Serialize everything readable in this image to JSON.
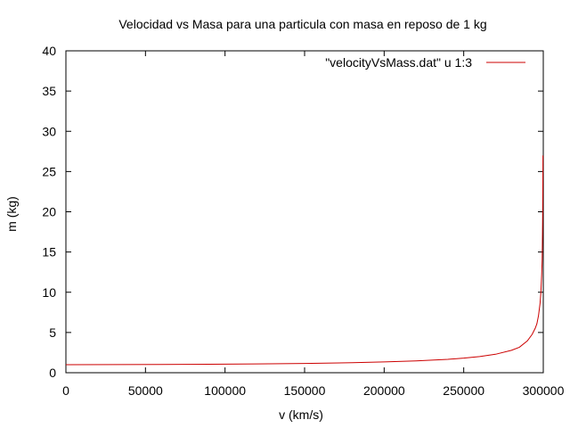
{
  "chart_data": {
    "type": "line",
    "title": "Velocidad vs Masa para una particula con masa en reposo de 1 kg",
    "xlabel": "v (km/s)",
    "ylabel": "m (kg)",
    "xlim": [
      0,
      300000
    ],
    "ylim": [
      0,
      40
    ],
    "x_ticks": [
      "0",
      "50000",
      "100000",
      "150000",
      "200000",
      "250000",
      "300000"
    ],
    "y_ticks": [
      "0",
      "5",
      "10",
      "15",
      "20",
      "25",
      "30",
      "35",
      "40"
    ],
    "grid": false,
    "legend_position": "top-right",
    "series": [
      {
        "name": "\"velocityVsMass.dat\" u 1:3",
        "color": "#cc0000",
        "x": [
          0,
          30000,
          60000,
          90000,
          120000,
          150000,
          180000,
          200000,
          220000,
          240000,
          250000,
          260000,
          270000,
          280000,
          285000,
          290000,
          293000,
          295000,
          296000,
          297000,
          298000,
          298500,
          299000,
          299300,
          299500,
          299600,
          299700,
          299750,
          299770,
          299790
        ],
        "y": [
          1,
          1.005,
          1.02,
          1.047,
          1.091,
          1.155,
          1.25,
          1.342,
          1.471,
          1.667,
          1.809,
          2.005,
          2.294,
          2.785,
          3.164,
          3.96,
          4.762,
          5.55,
          6.1,
          7.1,
          8.66,
          10.0,
          12.2,
          14.1,
          17.3,
          19.4,
          22.4,
          24.6,
          25.7,
          27.0
        ]
      }
    ]
  }
}
